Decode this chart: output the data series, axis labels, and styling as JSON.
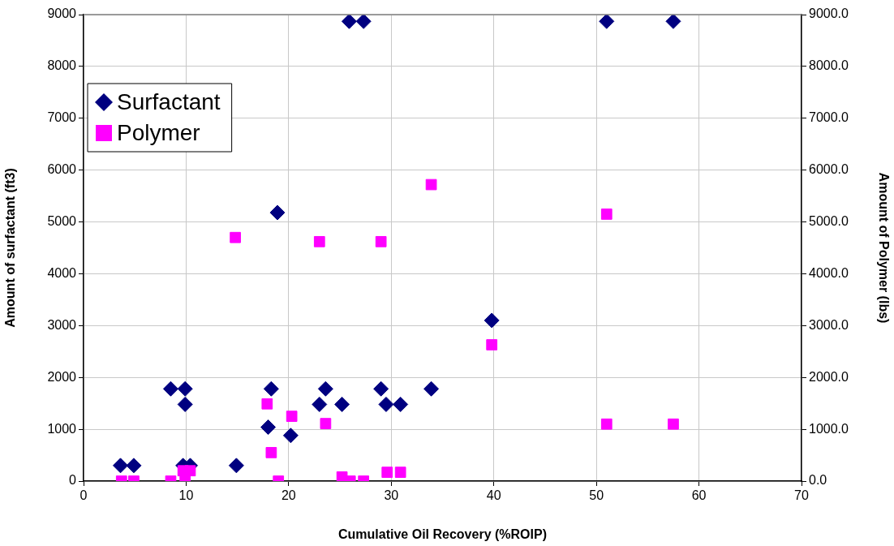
{
  "chart_data": {
    "type": "scatter",
    "xlabel": "Cumulative Oil Recovery (%ROIP)",
    "ylabel": "Amount of surfactant (ft3)",
    "y2label": "Amount of Polymer (lbs)",
    "xlim": [
      0,
      70
    ],
    "xticks": [
      0,
      10,
      20,
      30,
      40,
      50,
      60,
      70
    ],
    "ylim": [
      0,
      9000
    ],
    "yticks": [
      0,
      1000,
      2000,
      3000,
      4000,
      5000,
      6000,
      7000,
      8000,
      9000
    ],
    "y2lim": [
      0,
      9000
    ],
    "y2ticks": [
      {
        "value": 0,
        "label": "0.0"
      },
      {
        "value": 1000,
        "label": "1000.0"
      },
      {
        "value": 2000,
        "label": "2000.0"
      },
      {
        "value": 3000,
        "label": "3000.0"
      },
      {
        "value": 4000,
        "label": "4000.0"
      },
      {
        "value": 5000,
        "label": "5000.0"
      },
      {
        "value": 6000,
        "label": "6000.0"
      },
      {
        "value": 7000,
        "label": "7000.0"
      },
      {
        "value": 8000,
        "label": "8000.0"
      },
      {
        "value": 9000,
        "label": "9000.0"
      }
    ],
    "grid": true,
    "legend": "top left",
    "series": [
      {
        "name": "Surfactant",
        "color": "#000080",
        "marker": "diamond",
        "x": [
          3.6,
          4.9,
          8.5,
          9.9,
          9.9,
          9.7,
          10.4,
          14.9,
          18.0,
          18.3,
          18.9,
          20.2,
          23.0,
          23.6,
          25.2,
          25.9,
          27.3,
          29.0,
          29.5,
          30.9,
          33.9,
          39.8,
          51.0,
          57.5
        ],
        "values": [
          300,
          300,
          1780,
          1780,
          1480,
          300,
          300,
          300,
          1040,
          1780,
          5180,
          880,
          1480,
          1780,
          1480,
          8870,
          8870,
          1780,
          1480,
          1480,
          1780,
          3100,
          8870,
          8870
        ]
      },
      {
        "name": "Polymer",
        "color": "#ff00ff",
        "marker": "square",
        "axis": "y2",
        "x": [
          3.7,
          4.9,
          8.5,
          9.9,
          9.7,
          10.4,
          14.8,
          17.9,
          18.3,
          19.0,
          20.3,
          23.0,
          23.6,
          25.2,
          26.0,
          27.3,
          29.0,
          29.6,
          30.9,
          33.9,
          39.8,
          51.0,
          51.0,
          57.5
        ],
        "values": [
          0,
          0,
          0,
          0,
          200,
          200,
          4700,
          1490,
          550,
          0,
          1250,
          4620,
          1110,
          80,
          0,
          0,
          4620,
          170,
          170,
          5720,
          2630,
          5150,
          1100,
          1100
        ]
      }
    ]
  }
}
